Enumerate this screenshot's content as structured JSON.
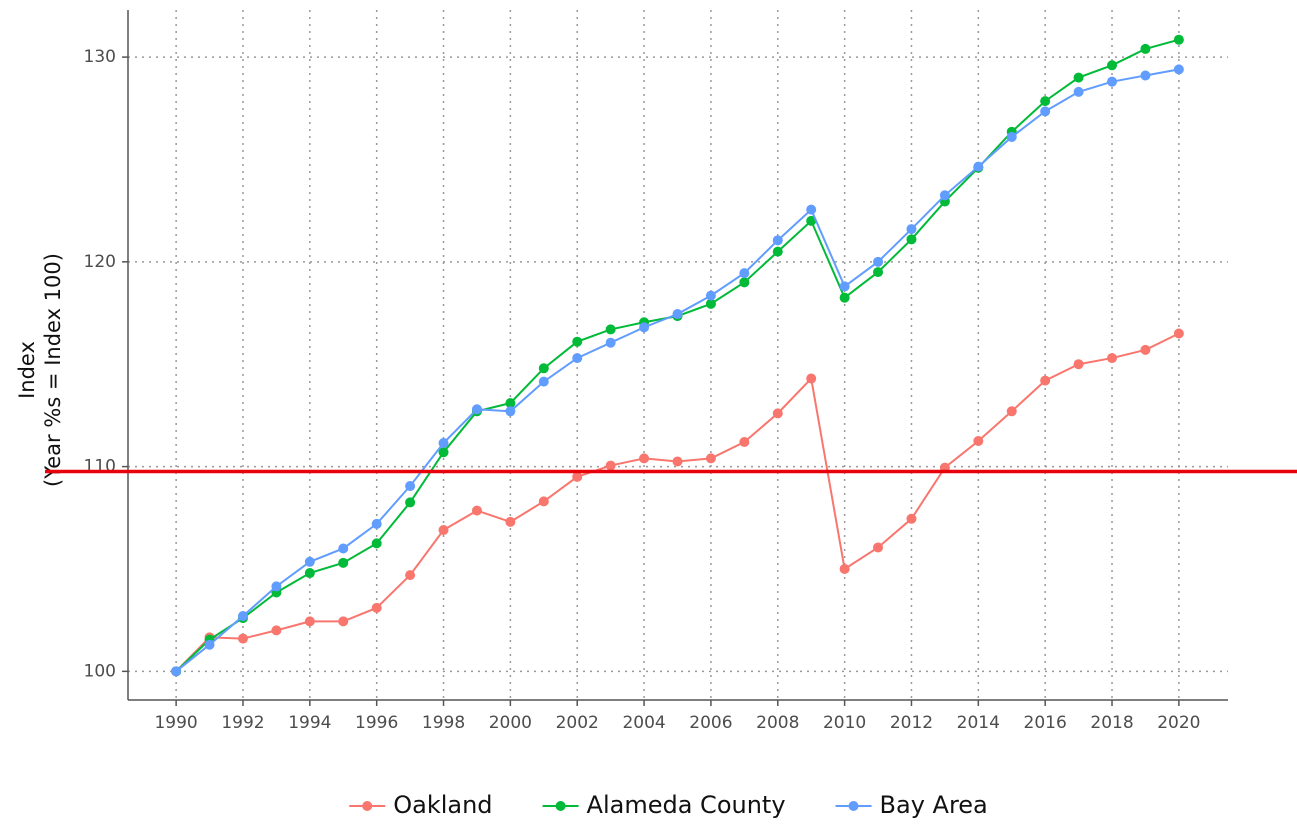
{
  "chart_data": {
    "type": "line",
    "ylabel": [
      "Index",
      "(Year %s = Index 100)"
    ],
    "x": [
      1990,
      1991,
      1992,
      1993,
      1994,
      1995,
      1996,
      1997,
      1998,
      1999,
      2000,
      2001,
      2002,
      2003,
      2004,
      2005,
      2006,
      2007,
      2008,
      2009,
      2010,
      2011,
      2012,
      2013,
      2014,
      2015,
      2016,
      2017,
      2018,
      2019,
      2020
    ],
    "series": [
      {
        "name": "Oakland",
        "color": "#F8766D",
        "values": [
          100,
          101.66,
          101.6,
          102.0,
          102.44,
          102.44,
          103.1,
          104.7,
          106.9,
          107.85,
          107.3,
          108.3,
          109.5,
          110.05,
          110.4,
          110.25,
          110.4,
          111.2,
          112.6,
          114.3,
          105.0,
          106.05,
          107.45,
          109.95,
          111.25,
          112.7,
          114.2,
          115.0,
          115.3,
          115.7,
          116.5
        ]
      },
      {
        "name": "Alameda County",
        "color": "#00BA38",
        "values": [
          100,
          101.55,
          102.6,
          103.85,
          104.8,
          105.3,
          106.25,
          108.25,
          110.7,
          112.7,
          113.1,
          114.8,
          116.1,
          116.7,
          117.05,
          117.35,
          117.95,
          119.0,
          120.5,
          122.0,
          118.25,
          119.5,
          121.1,
          122.95,
          124.6,
          126.35,
          127.85,
          129.0,
          129.6,
          130.4,
          130.85
        ]
      },
      {
        "name": "Bay Area",
        "color": "#619CFF",
        "values": [
          100,
          101.3,
          102.7,
          104.15,
          105.35,
          106.0,
          107.2,
          109.05,
          111.15,
          112.8,
          112.7,
          114.15,
          115.3,
          116.05,
          116.8,
          117.45,
          118.35,
          119.45,
          121.05,
          122.55,
          118.8,
          120.0,
          121.6,
          123.25,
          124.65,
          126.1,
          127.35,
          128.3,
          128.8,
          129.1,
          129.4
        ]
      }
    ],
    "xlim": [
      1988.56,
      2021.47
    ],
    "ylim": [
      98.6,
      132.3
    ],
    "xticks": [
      1990,
      1992,
      1994,
      1996,
      1998,
      2000,
      2002,
      2004,
      2006,
      2008,
      2010,
      2012,
      2014,
      2016,
      2018,
      2020
    ],
    "yticks": [
      100,
      110,
      120,
      130
    ],
    "grid": true,
    "hline": {
      "value": 109.76,
      "color": "#e8000b"
    },
    "legend": "bottom"
  }
}
